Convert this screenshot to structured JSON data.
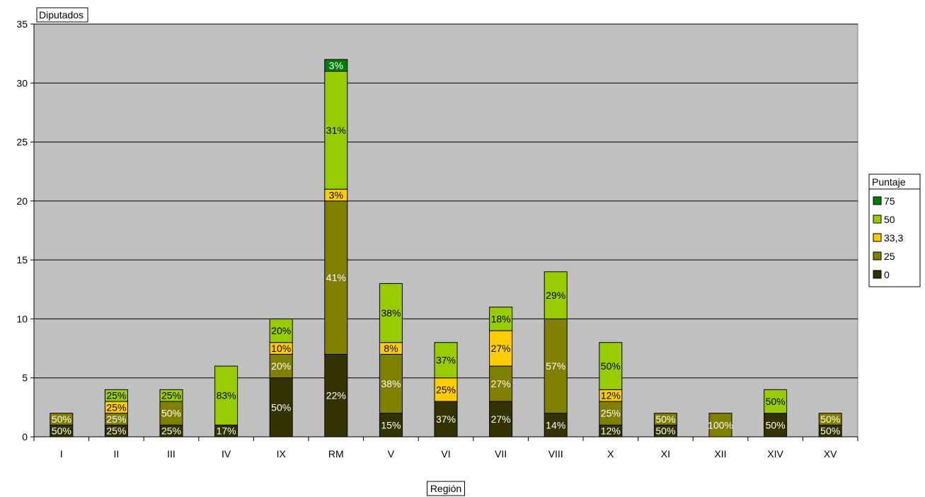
{
  "chart_data": {
    "type": "bar",
    "stacked": true,
    "title": "",
    "ylabel": "Diputados",
    "xlabel": "Región",
    "ylim": [
      0,
      35
    ],
    "yticks": [
      0,
      5,
      10,
      15,
      20,
      25,
      30,
      35
    ],
    "grid": true,
    "legend": {
      "title": "Puntaje",
      "placement": "right"
    },
    "categories": [
      "I",
      "II",
      "III",
      "IV",
      "IX",
      "RM",
      "V",
      "VI",
      "VII",
      "VIII",
      "X",
      "XI",
      "XII",
      "XIV",
      "XV"
    ],
    "series": [
      {
        "name": "0",
        "color": "#333300",
        "values": [
          1,
          1,
          1,
          1,
          5,
          7,
          2,
          3,
          3,
          2,
          1,
          1,
          0,
          2,
          1
        ],
        "labels": [
          "50%",
          "25%",
          "25%",
          "17%",
          "50%",
          "22%",
          "15%",
          "37%",
          "27%",
          "14%",
          "12%",
          "50%",
          "",
          "50%",
          "50%"
        ]
      },
      {
        "name": "25",
        "color": "#808000",
        "values": [
          1,
          1,
          2,
          0,
          2,
          13,
          5,
          0,
          3,
          8,
          2,
          1,
          2,
          0,
          1
        ],
        "labels": [
          "50%",
          "25%",
          "50%",
          "",
          "20%",
          "41%",
          "38%",
          "",
          "27%",
          "57%",
          "25%",
          "50%",
          "100%",
          "",
          "50%"
        ]
      },
      {
        "name": "33,3",
        "color": "#FFCC00",
        "values": [
          0,
          1,
          0,
          0,
          1,
          1,
          1,
          2,
          3,
          0,
          1,
          0,
          0,
          0,
          0
        ],
        "labels": [
          "",
          "25%",
          "",
          "",
          "10%",
          "3%",
          "8%",
          "25%",
          "27%",
          "",
          "12%",
          "",
          "",
          "",
          ""
        ]
      },
      {
        "name": "50",
        "color": "#99CC00",
        "values": [
          0,
          1,
          1,
          5,
          2,
          10,
          5,
          3,
          2,
          4,
          4,
          0,
          0,
          2,
          0
        ],
        "labels": [
          "",
          "25%",
          "25%",
          "83%",
          "20%",
          "31%",
          "38%",
          "37%",
          "18%",
          "29%",
          "50%",
          "",
          "",
          "50%",
          ""
        ]
      },
      {
        "name": "75",
        "color": "#008000",
        "values": [
          0,
          0,
          0,
          0,
          0,
          1,
          0,
          0,
          0,
          0,
          0,
          0,
          0,
          0,
          0
        ],
        "labels": [
          "",
          "",
          "",
          "",
          "",
          "3%",
          "",
          "",
          "",
          "",
          "",
          "",
          "",
          "",
          ""
        ]
      }
    ]
  }
}
